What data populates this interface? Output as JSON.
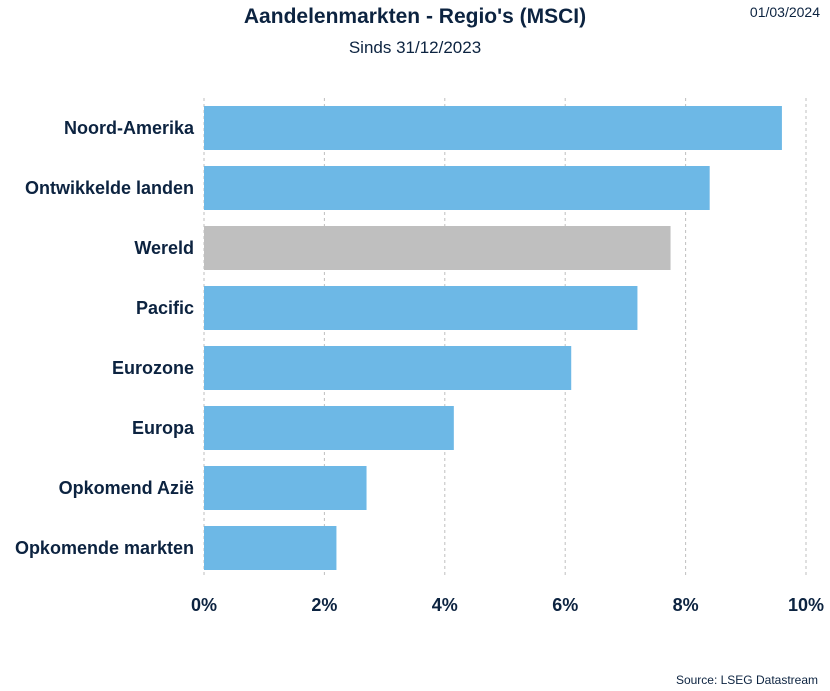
{
  "header": {
    "title": "Aandelenmarkten - Regio's (MSCI)",
    "subtitle": "Sinds 31/12/2023",
    "date": "01/03/2024"
  },
  "footer": {
    "source": "Source: LSEG Datastream"
  },
  "colors": {
    "bar": "#6db8e6",
    "highlight_bar": "#bfbfbf",
    "grid": "#bfbfbf",
    "text": "#0c2340"
  },
  "chart_data": {
    "type": "bar",
    "orientation": "horizontal",
    "title": "Aandelenmarkten - Regio's (MSCI)",
    "subtitle": "Sinds 31/12/2023",
    "categories": [
      "Noord-Amerika",
      "Ontwikkelde landen",
      "Wereld",
      "Pacific",
      "Eurozone",
      "Europa",
      "Opkomend Azië",
      "Opkomende markten"
    ],
    "values": [
      9.6,
      8.4,
      7.75,
      7.2,
      6.1,
      4.15,
      2.7,
      2.2
    ],
    "highlight": "Wereld",
    "xlim": [
      0,
      10
    ],
    "xticks": [
      0,
      2,
      4,
      6,
      8,
      10
    ],
    "xtick_labels": [
      "0%",
      "2%",
      "4%",
      "6%",
      "8%",
      "10%"
    ],
    "grid": "vertical dashed",
    "legend": "none"
  }
}
